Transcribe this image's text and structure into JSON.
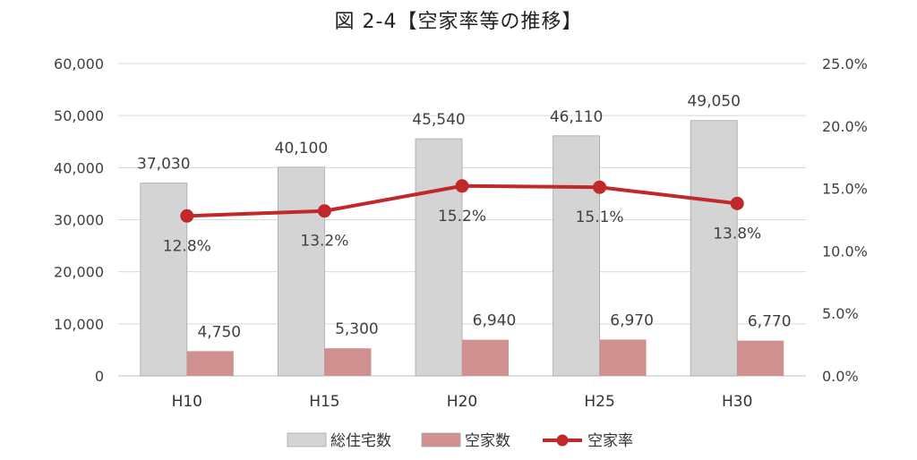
{
  "chart_data": {
    "type": "bar",
    "title": "図 2-4【空家率等の推移】",
    "categories": [
      "H10",
      "H15",
      "H20",
      "H25",
      "H30"
    ],
    "series": [
      {
        "name": "総住宅数",
        "type": "bar",
        "axis": "left",
        "color": "#d4d4d4",
        "values": [
          37030,
          40100,
          45540,
          46110,
          49050
        ]
      },
      {
        "name": "空家数",
        "type": "bar",
        "axis": "left",
        "color": "#d19090",
        "values": [
          4750,
          5300,
          6940,
          6970,
          6770
        ]
      },
      {
        "name": "空家率",
        "type": "line",
        "axis": "right",
        "color": "#c0282a",
        "values": [
          12.8,
          13.2,
          15.2,
          15.1,
          13.8
        ]
      }
    ],
    "data_labels": {
      "総住宅数": [
        "37,030",
        "40,100",
        "45,540",
        "46,110",
        "49,050"
      ],
      "空家数": [
        "4,750",
        "5,300",
        "6,940",
        "6,970",
        "6,770"
      ],
      "空家率": [
        "12.8%",
        "13.2%",
        "15.2%",
        "15.1%",
        "13.8%"
      ]
    },
    "y_left": {
      "lim": [
        0,
        60000
      ],
      "ticks": [
        0,
        10000,
        20000,
        30000,
        40000,
        50000,
        60000
      ],
      "tick_labels": [
        "0",
        "10,000",
        "20,000",
        "30,000",
        "40,000",
        "50,000",
        "60,000"
      ]
    },
    "y_right": {
      "lim": [
        0,
        25
      ],
      "ticks": [
        0,
        5,
        10,
        15,
        20,
        25
      ],
      "tick_labels": [
        "0.0%",
        "5.0%",
        "10.0%",
        "15.0%",
        "20.0%",
        "25.0%"
      ]
    },
    "grid": true,
    "legend": "bottom"
  }
}
